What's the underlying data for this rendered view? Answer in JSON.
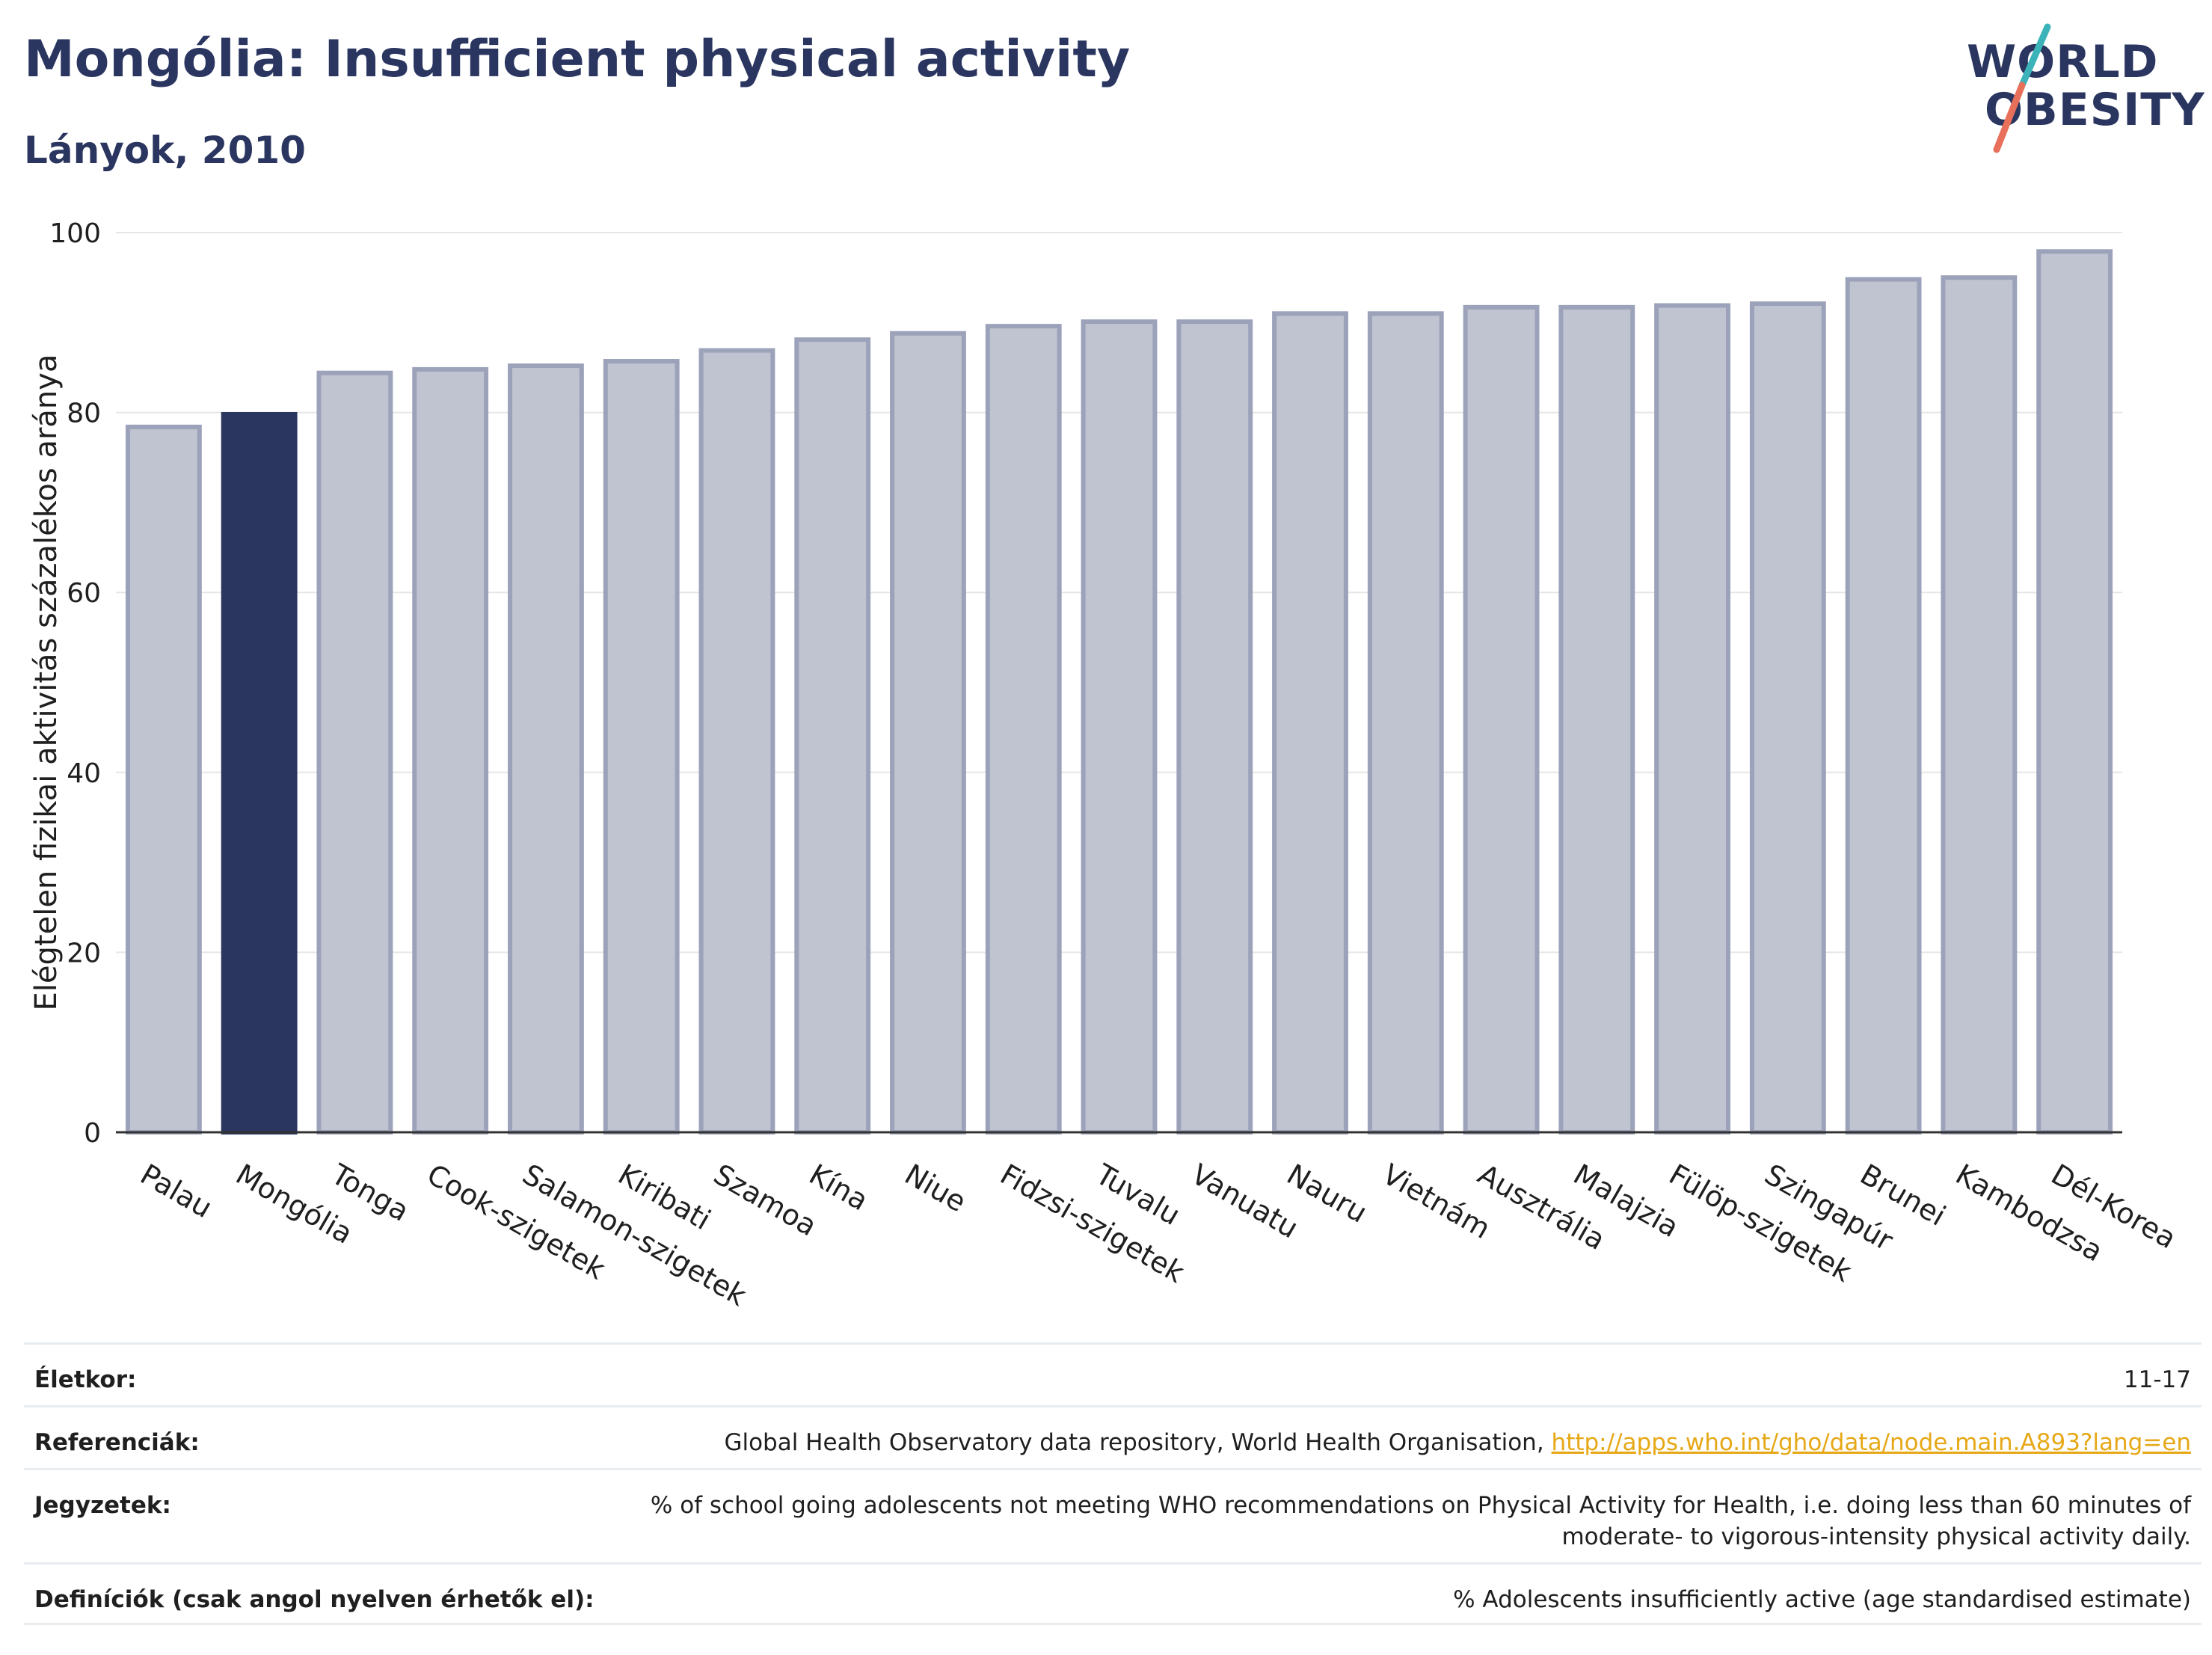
{
  "header": {
    "title": "Mongólia: Insufficient physical activity",
    "subtitle": "Lányok, 2010"
  },
  "logo": {
    "line1": "WORLD",
    "line2": "OBESITY",
    "accent_colors": [
      "#3bb3b9",
      "#e8705a"
    ]
  },
  "colors": {
    "highlight": "#2a3560",
    "bar": "#c0c3d0",
    "bar_edge": "#9ba2b9",
    "axis": "#333333",
    "grid": "#e6e6e6"
  },
  "chart_data": {
    "type": "bar",
    "title": "Mongólia: Insufficient physical activity",
    "subtitle": "Lányok, 2010",
    "xlabel": "",
    "ylabel": "Elégtelen fizikai aktivitás százalékos aránya",
    "ylim": [
      0,
      100
    ],
    "yticks": [
      0,
      20,
      40,
      60,
      80,
      100
    ],
    "grid": true,
    "highlight": "Mongólia",
    "categories": [
      "Palau",
      "Mongólia",
      "Tonga",
      "Cook-szigetek",
      "Salamon-szigetek",
      "Kiribati",
      "Szamoa",
      "Kína",
      "Niue",
      "Fidzsi-szigetek",
      "Tuvalu",
      "Vanuatu",
      "Nauru",
      "Vietnám",
      "Ausztrália",
      "Malajzia",
      "Fülöp-szigetek",
      "Szingapúr",
      "Brunei",
      "Kambodzsa",
      "Dél-Korea"
    ],
    "values": [
      78.4,
      79.8,
      84.4,
      84.8,
      85.2,
      85.7,
      86.9,
      88.1,
      88.8,
      89.6,
      90.1,
      90.1,
      91.0,
      91.0,
      91.7,
      91.7,
      91.9,
      92.1,
      94.8,
      95.0,
      97.9
    ]
  },
  "meta": {
    "rows": [
      {
        "key": "Életkor:",
        "value": "11-17"
      },
      {
        "key": "Referenciák:",
        "value": "Global Health Observatory data repository, World Health Organisation, ",
        "link": "http://apps.who.int/gho/data/node.main.A893?lang=en"
      },
      {
        "key": "Jegyzetek:",
        "value": "% of school going adolescents not meeting WHO recommendations on Physical Activity for Health, i.e. doing less than 60 minutes of moderate- to vigorous-intensity physical activity daily."
      },
      {
        "key": "Definíciók (csak angol nyelven érhetők el):",
        "value": "% Adolescents insufficiently active (age standardised estimate)"
      }
    ]
  }
}
